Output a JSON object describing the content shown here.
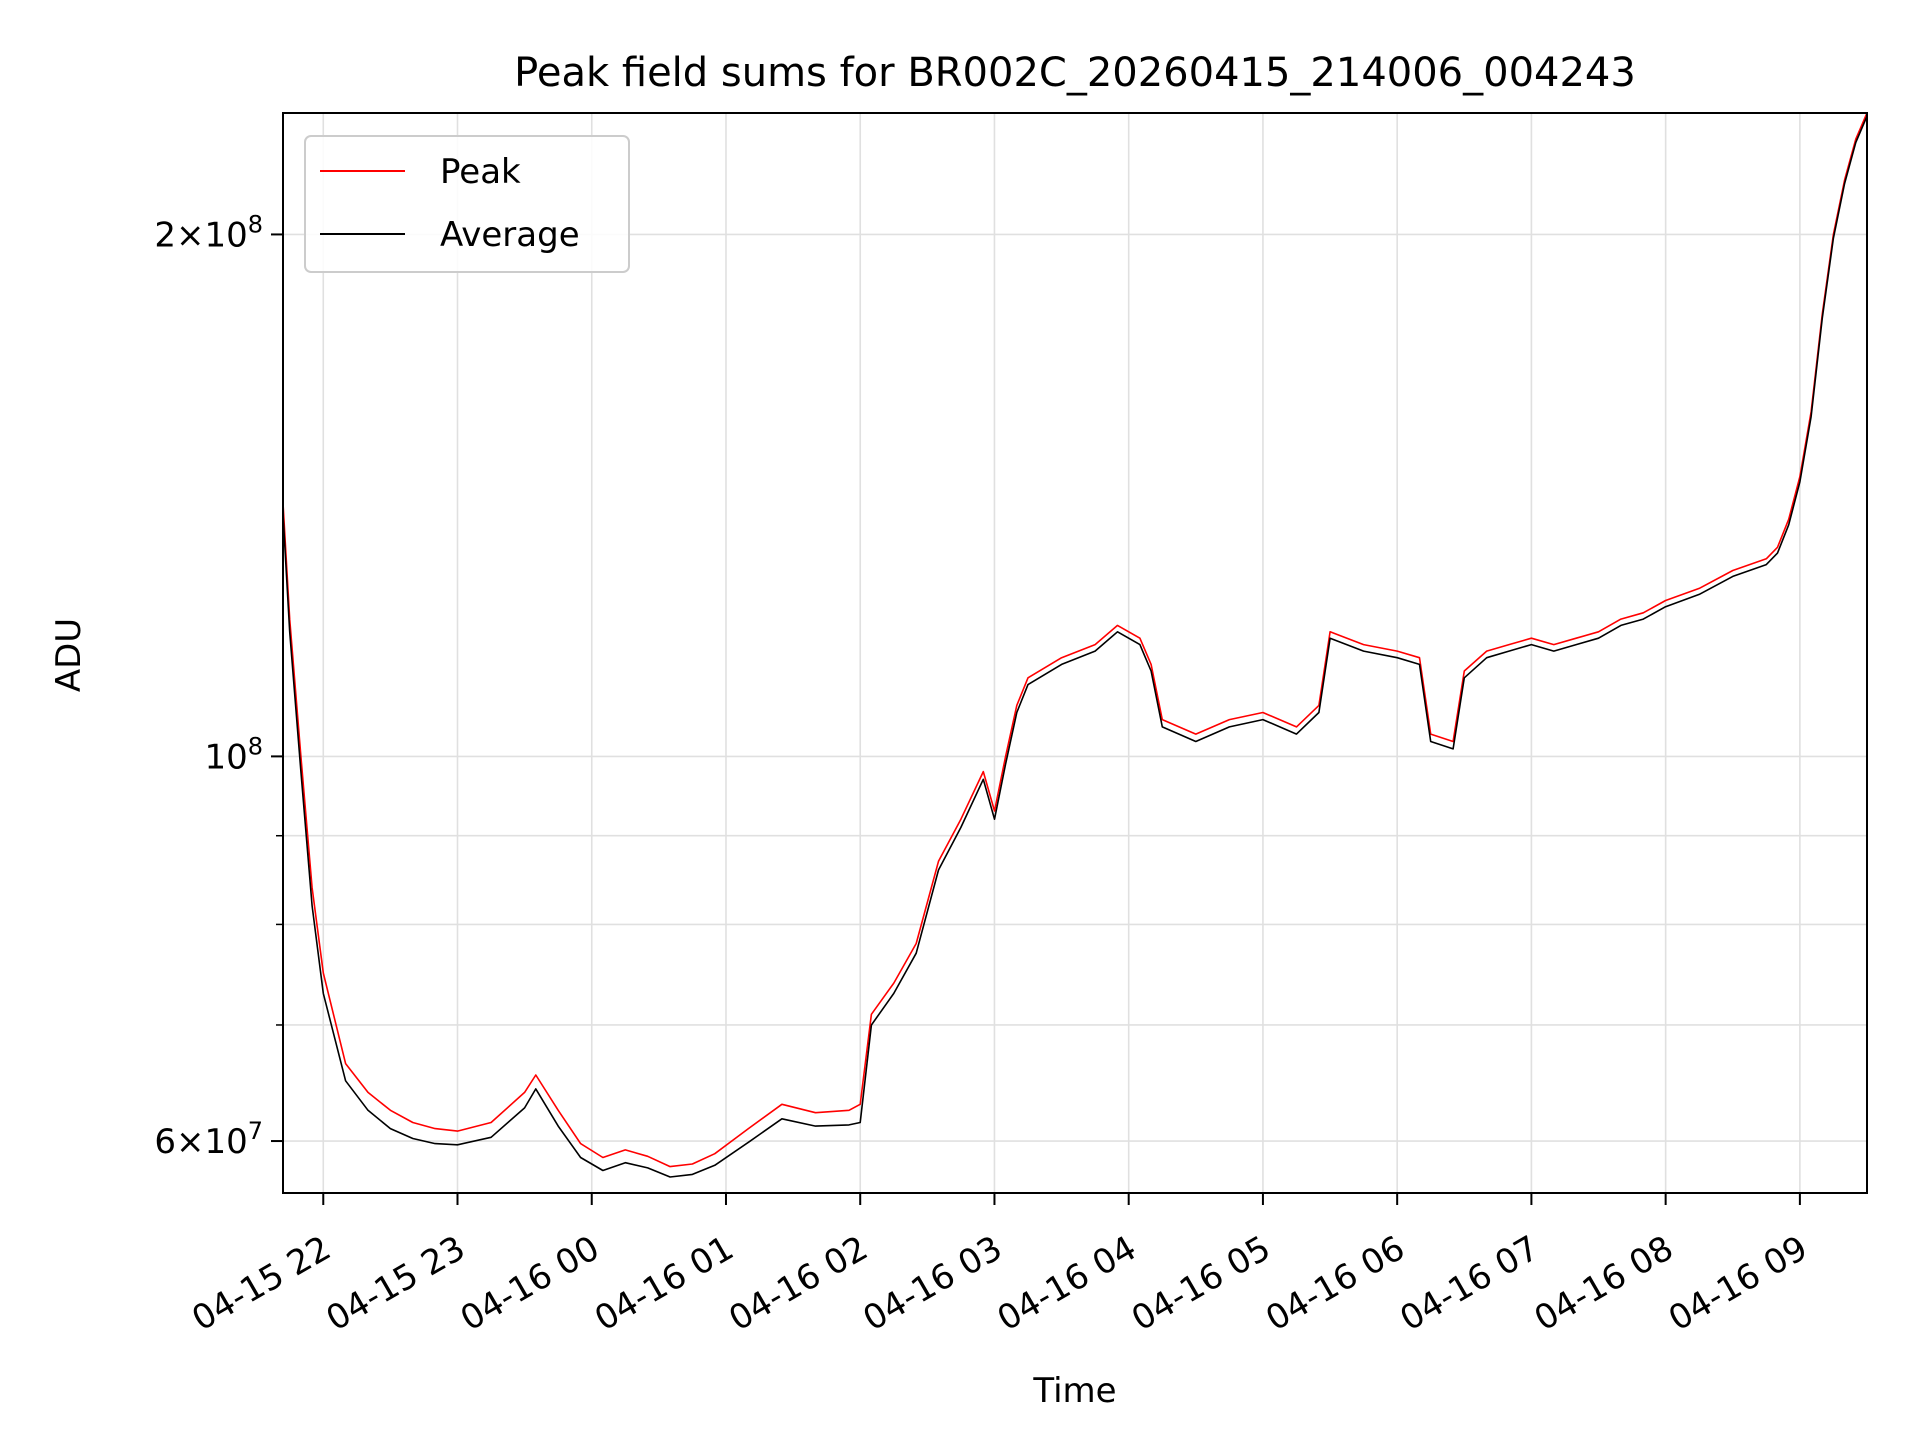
{
  "chart_data": {
    "type": "line",
    "title": "Peak field sums for BR002C_20260415_214006_004243",
    "xlabel": "Time",
    "ylabel": "ADU",
    "yscale": "log",
    "ylim": [
      56000000,
      235000000
    ],
    "xlim": [
      "2026-04-15 21:42",
      "2026-04-16 09:30"
    ],
    "grid": true,
    "legend_position": "top-left",
    "x_ticks": [
      "04-15 22",
      "04-15 23",
      "04-16 00",
      "04-16 01",
      "04-16 02",
      "04-16 03",
      "04-16 04",
      "04-16 05",
      "04-16 06",
      "04-16 07",
      "04-16 08",
      "04-16 09"
    ],
    "x_tick_times": [
      "2026-04-15 22:00",
      "2026-04-15 23:00",
      "2026-04-16 00:00",
      "2026-04-16 01:00",
      "2026-04-16 02:00",
      "2026-04-16 03:00",
      "2026-04-16 04:00",
      "2026-04-16 05:00",
      "2026-04-16 06:00",
      "2026-04-16 07:00",
      "2026-04-16 08:00",
      "2026-04-16 09:00"
    ],
    "y_major_ticks": [
      {
        "value": 60000000,
        "mantissa": "6",
        "exponent": "7"
      },
      {
        "value": 100000000,
        "mantissa": "",
        "exponent": "8"
      },
      {
        "value": 200000000,
        "mantissa": "2",
        "exponent": "8"
      }
    ],
    "y_minor_gridlines": [
      70000000,
      80000000,
      90000000
    ],
    "series": [
      {
        "name": "Peak",
        "color": "#ff0000",
        "x": [
          "2026-04-15 21:42",
          "2026-04-15 21:45",
          "2026-04-15 21:50",
          "2026-04-15 21:55",
          "2026-04-15 22:00",
          "2026-04-15 22:10",
          "2026-04-15 22:20",
          "2026-04-15 22:30",
          "2026-04-15 22:40",
          "2026-04-15 22:50",
          "2026-04-15 23:00",
          "2026-04-15 23:15",
          "2026-04-15 23:30",
          "2026-04-15 23:35",
          "2026-04-15 23:45",
          "2026-04-15 23:55",
          "2026-04-16 00:05",
          "2026-04-16 00:15",
          "2026-04-16 00:25",
          "2026-04-16 00:35",
          "2026-04-16 00:45",
          "2026-04-16 00:55",
          "2026-04-16 01:10",
          "2026-04-16 01:25",
          "2026-04-16 01:40",
          "2026-04-16 01:55",
          "2026-04-16 02:00",
          "2026-04-16 02:05",
          "2026-04-16 02:15",
          "2026-04-16 02:25",
          "2026-04-16 02:35",
          "2026-04-16 02:45",
          "2026-04-16 02:55",
          "2026-04-16 03:00",
          "2026-04-16 03:05",
          "2026-04-16 03:10",
          "2026-04-16 03:15",
          "2026-04-16 03:30",
          "2026-04-16 03:45",
          "2026-04-16 03:55",
          "2026-04-16 04:05",
          "2026-04-16 04:10",
          "2026-04-16 04:15",
          "2026-04-16 04:30",
          "2026-04-16 04:45",
          "2026-04-16 05:00",
          "2026-04-16 05:15",
          "2026-04-16 05:25",
          "2026-04-16 05:30",
          "2026-04-16 05:45",
          "2026-04-16 06:00",
          "2026-04-16 06:10",
          "2026-04-16 06:15",
          "2026-04-16 06:25",
          "2026-04-16 06:30",
          "2026-04-16 06:40",
          "2026-04-16 06:50",
          "2026-04-16 07:00",
          "2026-04-16 07:10",
          "2026-04-16 07:20",
          "2026-04-16 07:30",
          "2026-04-16 07:40",
          "2026-04-16 07:50",
          "2026-04-16 08:00",
          "2026-04-16 08:15",
          "2026-04-16 08:30",
          "2026-04-16 08:45",
          "2026-04-16 08:50",
          "2026-04-16 08:55",
          "2026-04-16 09:00",
          "2026-04-16 09:05",
          "2026-04-16 09:10",
          "2026-04-16 09:15",
          "2026-04-16 09:20",
          "2026-04-16 09:25",
          "2026-04-16 09:30"
        ],
        "values": [
          140000000,
          120000000,
          100000000,
          84000000,
          75000000,
          66500000,
          64000000,
          62500000,
          61500000,
          61000000,
          60800000,
          61500000,
          64000000,
          65500000,
          62500000,
          59800000,
          58700000,
          59300000,
          58800000,
          58000000,
          58200000,
          59000000,
          61000000,
          63000000,
          62300000,
          62500000,
          63000000,
          71000000,
          74000000,
          78000000,
          87000000,
          92000000,
          98000000,
          93000000,
          100000000,
          107000000,
          111000000,
          114000000,
          116000000,
          119000000,
          117000000,
          113000000,
          105000000,
          103000000,
          105000000,
          106000000,
          104000000,
          107000000,
          118000000,
          116000000,
          115000000,
          114000000,
          103000000,
          102000000,
          112000000,
          115000000,
          116000000,
          117000000,
          116000000,
          117000000,
          118000000,
          120000000,
          121000000,
          123000000,
          125000000,
          128000000,
          130000000,
          132000000,
          137000000,
          145000000,
          158000000,
          180000000,
          200000000,
          215000000,
          227000000,
          235000000
        ]
      },
      {
        "name": "Average",
        "color": "#000000",
        "x": [
          "2026-04-15 21:42",
          "2026-04-15 21:45",
          "2026-04-15 21:50",
          "2026-04-15 21:55",
          "2026-04-15 22:00",
          "2026-04-15 22:10",
          "2026-04-15 22:20",
          "2026-04-15 22:30",
          "2026-04-15 22:40",
          "2026-04-15 22:50",
          "2026-04-15 23:00",
          "2026-04-15 23:15",
          "2026-04-15 23:30",
          "2026-04-15 23:35",
          "2026-04-15 23:45",
          "2026-04-15 23:55",
          "2026-04-16 00:05",
          "2026-04-16 00:15",
          "2026-04-16 00:25",
          "2026-04-16 00:35",
          "2026-04-16 00:45",
          "2026-04-16 00:55",
          "2026-04-16 01:10",
          "2026-04-16 01:25",
          "2026-04-16 01:40",
          "2026-04-16 01:55",
          "2026-04-16 02:00",
          "2026-04-16 02:05",
          "2026-04-16 02:15",
          "2026-04-16 02:25",
          "2026-04-16 02:35",
          "2026-04-16 02:45",
          "2026-04-16 02:55",
          "2026-04-16 03:00",
          "2026-04-16 03:05",
          "2026-04-16 03:10",
          "2026-04-16 03:15",
          "2026-04-16 03:30",
          "2026-04-16 03:45",
          "2026-04-16 03:55",
          "2026-04-16 04:05",
          "2026-04-16 04:10",
          "2026-04-16 04:15",
          "2026-04-16 04:30",
          "2026-04-16 04:45",
          "2026-04-16 05:00",
          "2026-04-16 05:15",
          "2026-04-16 05:25",
          "2026-04-16 05:30",
          "2026-04-16 05:45",
          "2026-04-16 06:00",
          "2026-04-16 06:10",
          "2026-04-16 06:15",
          "2026-04-16 06:25",
          "2026-04-16 06:30",
          "2026-04-16 06:40",
          "2026-04-16 06:50",
          "2026-04-16 07:00",
          "2026-04-16 07:10",
          "2026-04-16 07:20",
          "2026-04-16 07:30",
          "2026-04-16 07:40",
          "2026-04-16 07:50",
          "2026-04-16 08:00",
          "2026-04-16 08:15",
          "2026-04-16 08:30",
          "2026-04-16 08:45",
          "2026-04-16 08:50",
          "2026-04-16 08:55",
          "2026-04-16 09:00",
          "2026-04-16 09:05",
          "2026-04-16 09:10",
          "2026-04-16 09:15",
          "2026-04-16 09:20",
          "2026-04-16 09:25",
          "2026-04-16 09:30"
        ],
        "values": [
          138000000,
          118000000,
          98000000,
          82000000,
          73000000,
          65000000,
          62500000,
          61000000,
          60200000,
          59800000,
          59700000,
          60300000,
          62700000,
          64300000,
          61200000,
          58700000,
          57700000,
          58300000,
          57900000,
          57200000,
          57400000,
          58100000,
          59900000,
          61800000,
          61200000,
          61300000,
          61500000,
          70000000,
          73000000,
          77000000,
          86000000,
          91000000,
          97000000,
          92000000,
          99000000,
          106000000,
          110000000,
          113000000,
          115000000,
          118000000,
          116000000,
          112000000,
          104000000,
          102000000,
          104000000,
          105000000,
          103000000,
          106000000,
          117000000,
          115000000,
          114000000,
          113000000,
          102000000,
          101000000,
          111000000,
          114000000,
          115000000,
          116000000,
          115000000,
          116000000,
          117000000,
          119000000,
          120000000,
          122000000,
          124000000,
          127000000,
          129000000,
          131000000,
          136000000,
          144000000,
          157000000,
          179000000,
          199000000,
          214000000,
          226000000,
          234000000
        ]
      }
    ]
  }
}
